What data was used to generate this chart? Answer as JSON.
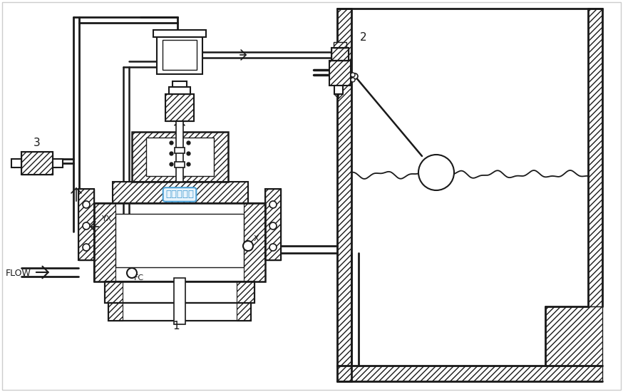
{
  "bg_color": "#ffffff",
  "lc": "#1a1a1a",
  "valve_label": "遙控浮球閥",
  "valve_label_color": "#4a9fd4",
  "valve_label_bg": "#e8f4fc",
  "label1": "1",
  "label2": "2",
  "label3": "3",
  "labelYX": "YX",
  "labelX": "X",
  "labelFC": "FC",
  "labelFLOW": "FLOW"
}
